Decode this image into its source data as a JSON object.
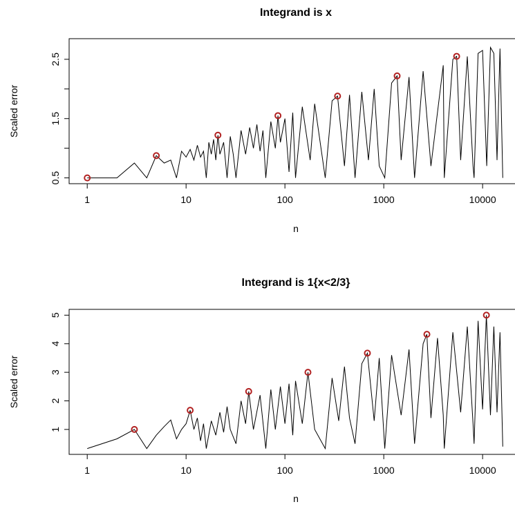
{
  "chart_data": [
    {
      "type": "line",
      "title": "Integrand is x",
      "xlabel": "n",
      "ylabel": "Scaled error",
      "x_scale": "log",
      "xlim": [
        1,
        16384
      ],
      "ylim": [
        0.5,
        2.75
      ],
      "x_ticks": [
        1,
        10,
        100,
        1000,
        10000
      ],
      "x_tick_labels": [
        "1",
        "10",
        "100",
        "1000",
        "10000"
      ],
      "y_ticks": [
        0.5,
        1.0,
        1.5,
        2.0,
        2.5
      ],
      "y_tick_labels": [
        "0.5",
        "",
        "1.5",
        "",
        "2.5"
      ],
      "grid": false,
      "line_color": "#000000",
      "marker_color": "#b22222",
      "series": [
        {
          "x": [
            1,
            2,
            3,
            4,
            5,
            6,
            7,
            8,
            9,
            10,
            11,
            12,
            13,
            14,
            15,
            16,
            17,
            18,
            19,
            20,
            21,
            22,
            24,
            26,
            28,
            30,
            32,
            36,
            40,
            44,
            48,
            52,
            56,
            60,
            64,
            72,
            80,
            85,
            90,
            100,
            110,
            120,
            128,
            150,
            180,
            200,
            256,
            300,
            341,
            400,
            450,
            512,
            600,
            700,
            800,
            900,
            1024,
            1200,
            1365,
            1500,
            1800,
            2048,
            2500,
            3000,
            4000,
            4096,
            5000,
            5461,
            6000,
            7000,
            8000,
            8192,
            9000,
            10000,
            11000,
            12000,
            13000,
            14000,
            15000,
            16000
          ],
          "y": [
            0.5,
            0.5,
            0.75,
            0.5,
            0.875,
            0.75,
            0.8,
            0.5,
            0.95,
            0.85,
            0.98,
            0.8,
            1.05,
            0.85,
            0.95,
            0.5,
            1.1,
            0.9,
            1.15,
            0.8,
            1.22,
            0.9,
            1.1,
            0.5,
            1.2,
            0.9,
            0.5,
            1.3,
            0.9,
            1.35,
            1.0,
            1.4,
            0.95,
            1.3,
            0.5,
            1.45,
            1.0,
            1.55,
            1.1,
            1.5,
            0.6,
            1.6,
            0.5,
            1.7,
            0.8,
            1.75,
            0.5,
            1.8,
            1.88,
            0.7,
            1.9,
            0.5,
            1.95,
            0.8,
            2.0,
            0.7,
            0.5,
            2.1,
            2.22,
            0.8,
            2.2,
            0.5,
            2.3,
            0.7,
            2.4,
            0.5,
            2.5,
            2.55,
            0.8,
            2.55,
            0.7,
            0.5,
            2.6,
            2.65,
            0.7,
            2.7,
            2.6,
            0.8,
            2.68,
            0.5
          ]
        }
      ],
      "highlighted_points": {
        "x": [
          1,
          5,
          21,
          85,
          341,
          1365,
          5461
        ],
        "y": [
          0.5,
          0.875,
          1.22,
          1.55,
          1.88,
          2.22,
          2.55
        ]
      }
    },
    {
      "type": "line",
      "title": "Integrand is 1{x<2/3}",
      "xlabel": "n",
      "ylabel": "Scaled error",
      "x_scale": "log",
      "xlim": [
        1,
        16384
      ],
      "ylim": [
        0.33,
        5.0
      ],
      "x_ticks": [
        1,
        10,
        100,
        1000,
        10000
      ],
      "x_tick_labels": [
        "1",
        "10",
        "100",
        "1000",
        "10000"
      ],
      "y_ticks": [
        1,
        2,
        3,
        4,
        5
      ],
      "y_tick_labels": [
        "1",
        "2",
        "3",
        "4",
        "5"
      ],
      "grid": false,
      "line_color": "#000000",
      "marker_color": "#b22222",
      "series": [
        {
          "x": [
            1,
            2,
            3,
            4,
            5,
            6,
            7,
            8,
            9,
            10,
            11,
            12,
            13,
            14,
            15,
            16,
            18,
            20,
            22,
            24,
            26,
            28,
            32,
            36,
            40,
            43,
            48,
            56,
            64,
            72,
            80,
            90,
            100,
            110,
            120,
            128,
            150,
            171,
            200,
            256,
            300,
            350,
            400,
            450,
            512,
            600,
            683,
            800,
            900,
            1024,
            1200,
            1500,
            1800,
            2048,
            2500,
            2731,
            3000,
            3500,
            4000,
            4096,
            5000,
            6000,
            7000,
            8000,
            8192,
            9000,
            10000,
            10923,
            12000,
            13000,
            14000,
            15000,
            16000
          ],
          "y": [
            0.33,
            0.67,
            1.0,
            0.33,
            0.8,
            1.1,
            1.33,
            0.67,
            1.0,
            1.2,
            1.67,
            1.0,
            1.4,
            0.6,
            1.2,
            0.33,
            1.3,
            0.8,
            1.6,
            0.9,
            1.8,
            1.0,
            0.5,
            2.0,
            1.2,
            2.33,
            1.0,
            2.2,
            0.33,
            2.4,
            1.0,
            2.5,
            1.2,
            2.6,
            0.8,
            2.7,
            1.2,
            3.0,
            1.0,
            0.33,
            2.8,
            1.3,
            3.2,
            1.4,
            0.5,
            3.3,
            3.67,
            1.3,
            3.5,
            0.33,
            3.6,
            1.5,
            3.8,
            0.5,
            4.0,
            4.33,
            1.4,
            4.2,
            1.5,
            0.33,
            4.4,
            1.6,
            4.6,
            1.2,
            0.5,
            4.8,
            1.7,
            5.0,
            1.5,
            4.6,
            1.6,
            4.4,
            0.4
          ]
        }
      ],
      "highlighted_points": {
        "x": [
          3,
          11,
          43,
          171,
          683,
          2731,
          10923
        ],
        "y": [
          1.0,
          1.67,
          2.33,
          3.0,
          3.67,
          4.33,
          5.0
        ]
      }
    }
  ]
}
